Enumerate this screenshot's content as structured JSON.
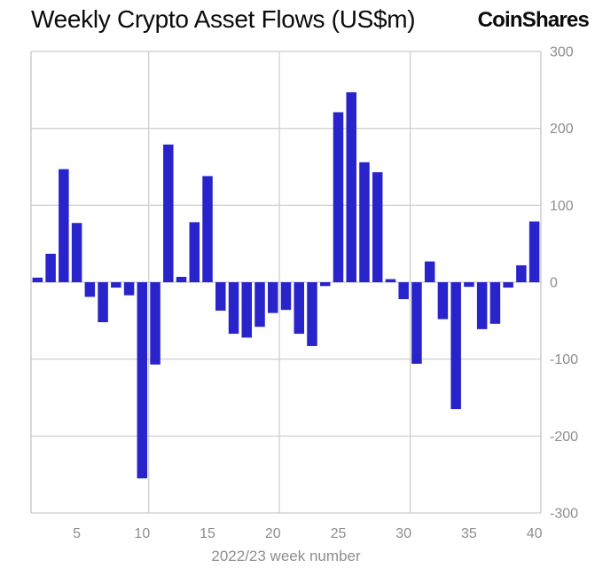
{
  "header": {
    "title": "Weekly Crypto Asset Flows (US$m)",
    "brand": "CoinShares"
  },
  "chart_data": {
    "type": "bar",
    "title": "Weekly Crypto Asset Flows (US$m)",
    "xlabel": "2022/23 week number",
    "ylabel": "",
    "x": [
      2,
      3,
      4,
      5,
      6,
      7,
      8,
      9,
      10,
      11,
      12,
      13,
      14,
      15,
      16,
      17,
      18,
      19,
      20,
      21,
      22,
      23,
      24,
      25,
      26,
      27,
      28,
      29,
      30,
      31,
      32,
      33,
      34,
      35,
      36,
      37,
      38,
      39,
      40
    ],
    "values": [
      6,
      37,
      147,
      77,
      -19,
      -52,
      -7,
      -17,
      -255,
      -107,
      179,
      7,
      78,
      138,
      -37,
      -67,
      -72,
      -58,
      -40,
      -36,
      -67,
      -83,
      -5,
      221,
      247,
      156,
      143,
      4,
      -22,
      -106,
      27,
      -48,
      -165,
      -6,
      -61,
      -54,
      -7,
      22,
      79
    ],
    "ylim": [
      -300,
      300
    ],
    "y_ticks": [
      300,
      200,
      100,
      0,
      -100,
      -200,
      -300
    ],
    "x_ticks": [
      5,
      10,
      15,
      20,
      25,
      30,
      35,
      40
    ],
    "x_gridlines_after_week": [
      10,
      20,
      30
    ],
    "legend": "none",
    "grid": "on",
    "bar_color": "#2823cb",
    "grid_color": "#cccccc",
    "axis_color": "#c2c2c2",
    "label_color": "#8e8e8e"
  }
}
